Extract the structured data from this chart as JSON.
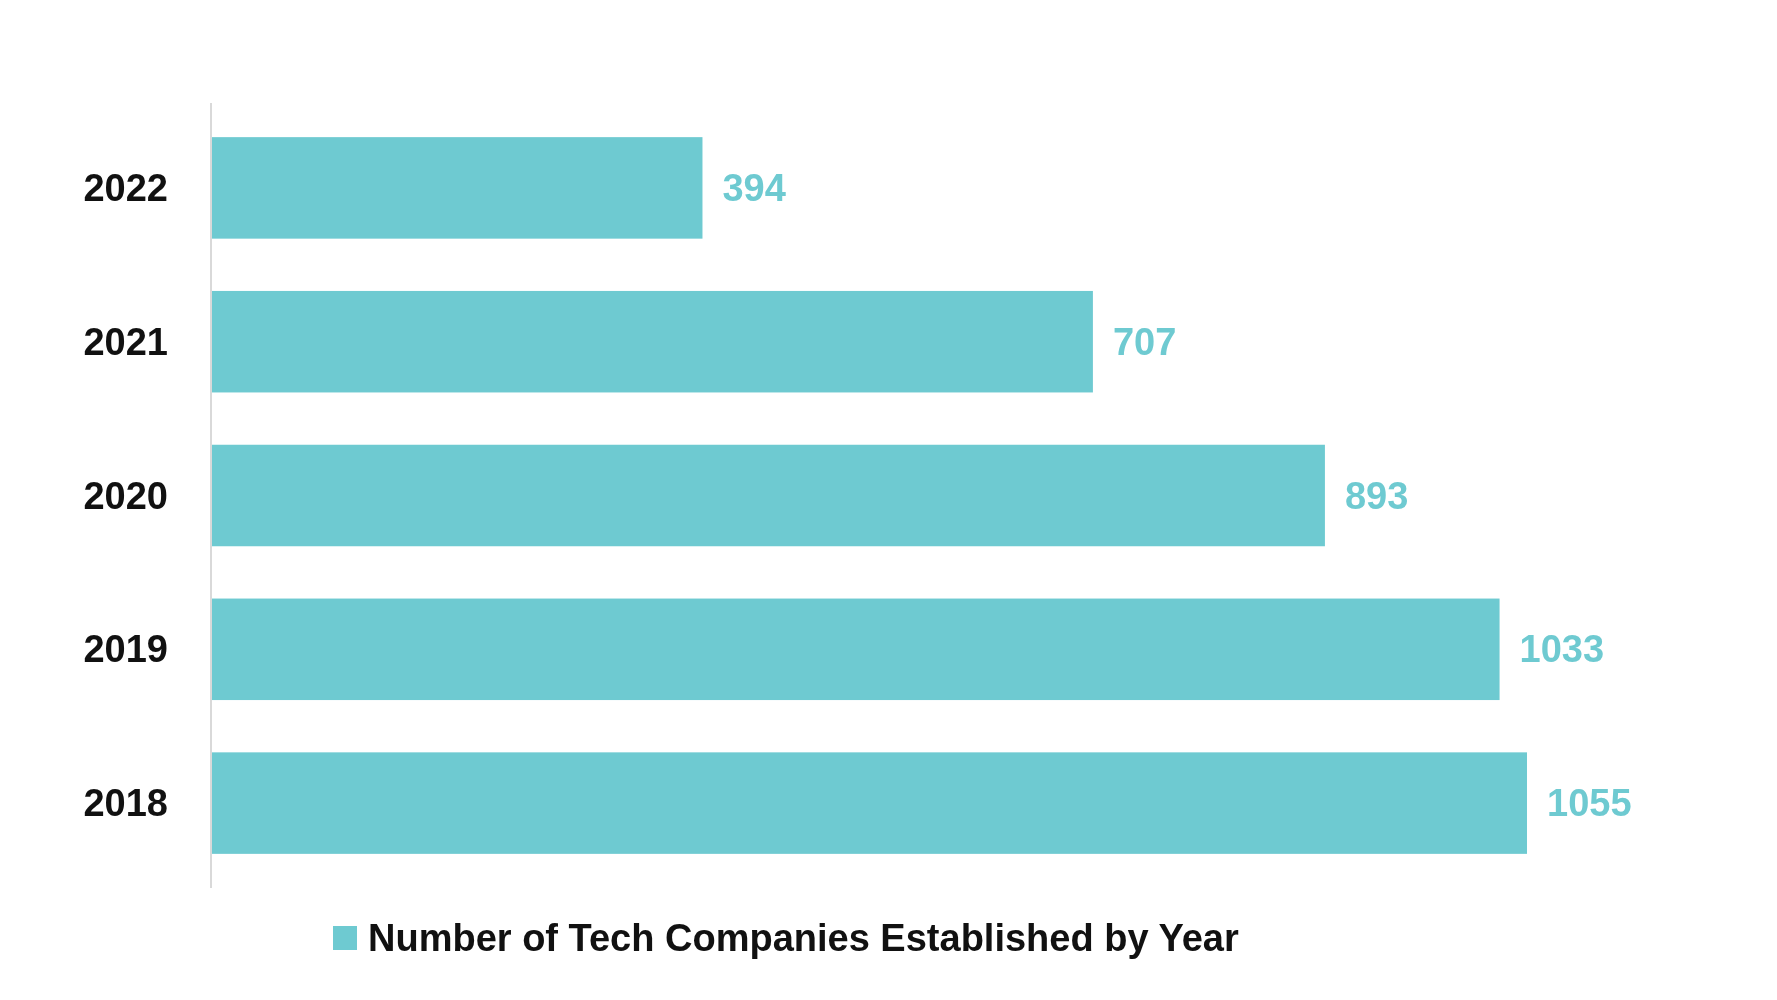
{
  "chart_data": {
    "type": "bar",
    "orientation": "horizontal",
    "categories": [
      "2022",
      "2021",
      "2020",
      "2019",
      "2018"
    ],
    "series": [
      {
        "name": "Number of Tech Companies Established by Year",
        "color": "#6ecad1",
        "values": [
          394,
          707,
          893,
          1033,
          1055
        ]
      }
    ],
    "data_labels": true,
    "legend": "bottom"
  }
}
